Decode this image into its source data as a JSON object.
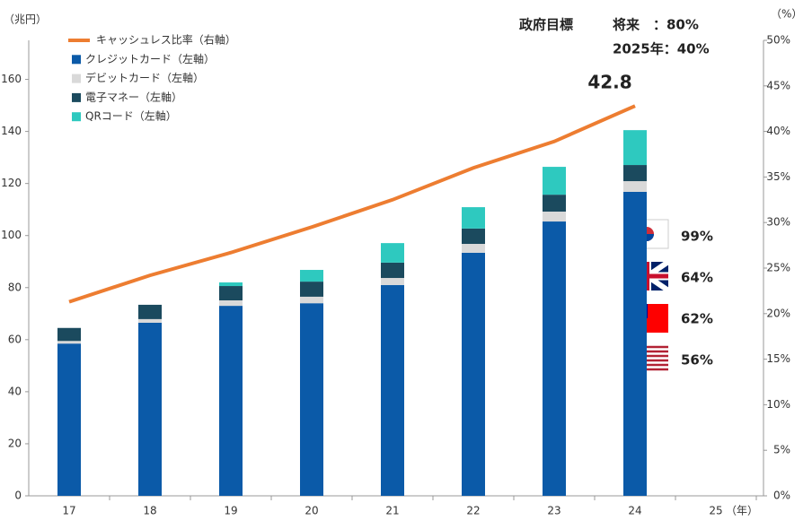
{
  "chart_data": {
    "type": "bar",
    "stacked": true,
    "y_axis_label": "（兆円）",
    "y2_axis_label": "（%）",
    "x_axis_label": "（年）",
    "categories": [
      "17",
      "18",
      "19",
      "20",
      "21",
      "22",
      "23",
      "24",
      "25"
    ],
    "ylim": [
      0,
      175
    ],
    "yticks": [
      0,
      20,
      40,
      60,
      80,
      100,
      120,
      140,
      160
    ],
    "y2lim": [
      0,
      50
    ],
    "y2ticks": [
      {
        "value": 0,
        "label": "0%"
      },
      {
        "value": 5,
        "label": "5%"
      },
      {
        "value": 10,
        "label": "10%"
      },
      {
        "value": 15,
        "label": "15%"
      },
      {
        "value": 20,
        "label": "20%"
      },
      {
        "value": 25,
        "label": "25%"
      },
      {
        "value": 30,
        "label": "30%"
      },
      {
        "value": 35,
        "label": "35%"
      },
      {
        "value": 40,
        "label": "40%"
      },
      {
        "value": 45,
        "label": "45%"
      },
      {
        "value": 50,
        "label": "50%"
      }
    ],
    "series": [
      {
        "name": "キャッシュレス比率（右軸）",
        "type": "line",
        "axis": "y2",
        "color": "#ed7d31",
        "values": [
          21.3,
          24.2,
          26.7,
          29.5,
          32.5,
          36.0,
          38.9,
          42.8,
          null
        ]
      },
      {
        "name": "クレジットカード（左軸）",
        "color": "#0b5aa8",
        "values": [
          58.5,
          66.5,
          73.0,
          74.0,
          81.0,
          93.4,
          105.4,
          116.8,
          null
        ]
      },
      {
        "name": "デビットカード（左軸）",
        "color": "#d9d9d9",
        "values": [
          1.0,
          1.4,
          2.1,
          2.5,
          2.7,
          3.4,
          3.8,
          4.1,
          null
        ]
      },
      {
        "name": "電子マネー（左軸）",
        "color": "#1b4a5e",
        "values": [
          5.0,
          5.5,
          5.5,
          5.8,
          5.9,
          5.9,
          6.5,
          6.2,
          null
        ]
      },
      {
        "name": "QRコード（左軸）",
        "color": "#2ec9bf",
        "values": [
          0,
          0,
          1.4,
          4.5,
          7.5,
          8.2,
          10.7,
          13.4,
          null
        ]
      }
    ],
    "annotations": {
      "target_title": "政府目標",
      "target_future": "将来　：80%",
      "target_2025": "2025年：40%",
      "country_rates": [
        "99%",
        "64%",
        "62%",
        "56%"
      ]
    }
  }
}
